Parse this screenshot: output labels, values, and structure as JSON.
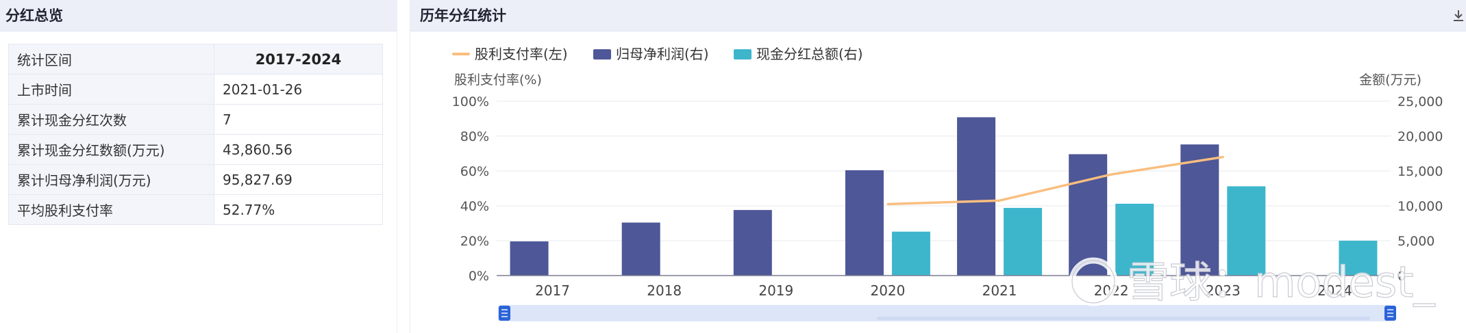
{
  "left_panel": {
    "title": "分红总览",
    "table": [
      {
        "key": "统计区间",
        "value": "2017-2024"
      },
      {
        "key": "上市时间",
        "value": "2021-01-26"
      },
      {
        "key": "累计现金分红次数",
        "value": "7"
      },
      {
        "key": "累计现金分红数额(万元)",
        "value": "43,860.56"
      },
      {
        "key": "累计归母净利润(万元)",
        "value": "95,827.69"
      },
      {
        "key": "平均股利支付率",
        "value": "52.77%"
      }
    ]
  },
  "right_panel": {
    "title": "历年分红统计",
    "download_icon": "download-icon"
  },
  "watermark": "雪球：modest_",
  "chart_data": {
    "type": "bar",
    "categories": [
      "2017",
      "2018",
      "2019",
      "2020",
      "2021",
      "2022",
      "2023",
      "2024"
    ],
    "legend": [
      "股利支付率(左)",
      "归母净利润(右)",
      "现金分红总额(右)"
    ],
    "legend_position": "top-left",
    "series": [
      {
        "name": "股利支付率(左)",
        "type": "line",
        "axis": "left",
        "color": "#f9be7f",
        "values": [
          null,
          null,
          null,
          41,
          43,
          58,
          68,
          null
        ]
      },
      {
        "name": "归母净利润(右)",
        "type": "bar",
        "axis": "right",
        "color": "#4e5797",
        "values": [
          4900,
          7600,
          9400,
          15100,
          22700,
          17400,
          18800,
          null
        ]
      },
      {
        "name": "现金分红总额(右)",
        "type": "bar",
        "axis": "right",
        "color": "#3db6cc",
        "values": [
          null,
          null,
          null,
          6300,
          9700,
          10300,
          12800,
          5000
        ]
      }
    ],
    "y_left": {
      "label": "股利支付率(%)",
      "ylim": [
        0,
        100
      ],
      "ticks": [
        "0%",
        "20%",
        "40%",
        "60%",
        "80%",
        "100%"
      ]
    },
    "y_right": {
      "label": "金额(万元)",
      "ylim": [
        0,
        25000
      ],
      "ticks": [
        "0",
        "5,000",
        "10,000",
        "15,000",
        "20,000",
        "25,000"
      ]
    },
    "grid": true,
    "zoom_slider": true
  }
}
